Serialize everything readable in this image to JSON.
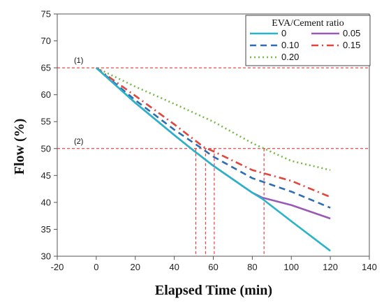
{
  "chart_data": {
    "type": "line",
    "xlabel": "Elapsed Time (min)",
    "ylabel": "Flow (%)",
    "xlim": [
      -20,
      140
    ],
    "ylim": [
      30,
      75
    ],
    "x_ticks": [
      -20,
      0,
      20,
      40,
      60,
      80,
      100,
      120,
      140
    ],
    "y_ticks": [
      30,
      35,
      40,
      45,
      50,
      55,
      60,
      65,
      70,
      75
    ],
    "grid": false,
    "legend": {
      "title": "EVA/Cement  ratio",
      "placement": "top-right"
    },
    "series": [
      {
        "name": "0",
        "color": "#29b3c9",
        "dash": "solid",
        "x": [
          0,
          20,
          40,
          50,
          55,
          60,
          80,
          85,
          100,
          120
        ],
        "y": [
          65,
          58.5,
          52.5,
          49.6,
          48.2,
          46.8,
          41.8,
          40.7,
          36.5,
          31
        ]
      },
      {
        "name": "0.05",
        "color": "#9b59b6",
        "dash": "solid",
        "x": [
          0,
          20,
          40,
          50,
          55,
          60,
          80,
          85,
          100,
          120
        ],
        "y": [
          65,
          58.5,
          52.5,
          49.6,
          48.2,
          46.8,
          41.8,
          40.9,
          39.5,
          37
        ]
      },
      {
        "name": "0.10",
        "color": "#2e6db4",
        "dash": "dash",
        "x": [
          0,
          20,
          40,
          55,
          60,
          80,
          100,
          120
        ],
        "y": [
          65,
          59,
          53.5,
          49.8,
          48.5,
          44.5,
          42,
          39
        ]
      },
      {
        "name": "0.15",
        "color": "#e0463c",
        "dash": "dashdot",
        "x": [
          0,
          20,
          40,
          55,
          60,
          80,
          100,
          120
        ],
        "y": [
          65,
          59.8,
          54.5,
          50.3,
          49.5,
          46,
          44,
          41
        ]
      },
      {
        "name": "0.20",
        "color": "#76b947",
        "dash": "dot",
        "x": [
          0,
          20,
          40,
          60,
          80,
          100,
          120
        ],
        "y": [
          65,
          61.5,
          58.3,
          55,
          51,
          47.7,
          46
        ]
      }
    ],
    "reference_lines": {
      "horizontal": [
        {
          "label": "(1)",
          "y": 65
        },
        {
          "label": "(2)",
          "y": 50
        }
      ],
      "vertical_x": [
        51,
        56,
        60.5,
        86
      ],
      "color": "#e02020"
    }
  }
}
